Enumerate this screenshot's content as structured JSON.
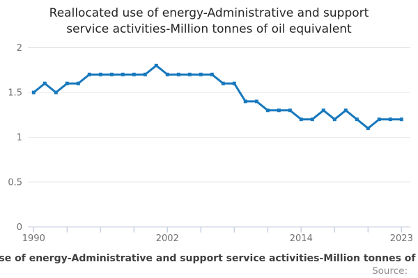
{
  "title": "Reallocated use of energy-Administrative and support service activities-Million tonnes of oil equivalent",
  "footer": {
    "legend": "Reallocated use of energy-Administrative and support service activities-Million tonnes of oil equivalent",
    "source_label": "Source:"
  },
  "colors": {
    "line": "#1878bd",
    "grid": "#e6e6e6",
    "axis": "#c9d2e2",
    "axis_label": "#707070",
    "title_text": "#262626",
    "legend_text": "#3f3f3f",
    "source_text": "#8c8c8c"
  },
  "chart_data": {
    "type": "line",
    "title": "Reallocated use of energy-Administrative and support service activities-Million tonnes of oil equivalent",
    "xlabel": "",
    "ylabel": "",
    "xlim": [
      1990,
      2023
    ],
    "ylim": [
      0,
      2
    ],
    "grid": true,
    "legend_position": "bottom",
    "x_tick_years": [
      1990,
      1993,
      1996,
      1999,
      2002,
      2005,
      2008,
      2011,
      2014,
      2017,
      2020,
      2023
    ],
    "x_labeled_years": [
      1990,
      2002,
      2014,
      2023
    ],
    "y_ticks": [
      0,
      0.5,
      1,
      1.5,
      2
    ],
    "x": [
      1990,
      1991,
      1992,
      1993,
      1994,
      1995,
      1996,
      1997,
      1998,
      1999,
      2000,
      2001,
      2002,
      2003,
      2004,
      2005,
      2006,
      2007,
      2008,
      2009,
      2010,
      2011,
      2012,
      2013,
      2014,
      2015,
      2016,
      2017,
      2018,
      2019,
      2020,
      2021,
      2022,
      2023
    ],
    "series": [
      {
        "name": "Reallocated use of energy-Administrative and support service activities-Million tonnes of oil equivalent",
        "values": [
          1.5,
          1.6,
          1.5,
          1.6,
          1.6,
          1.7,
          1.7,
          1.7,
          1.7,
          1.7,
          1.7,
          1.8,
          1.7,
          1.7,
          1.7,
          1.7,
          1.7,
          1.6,
          1.6,
          1.4,
          1.4,
          1.3,
          1.3,
          1.3,
          1.2,
          1.2,
          1.3,
          1.2,
          1.3,
          1.2,
          1.1,
          1.2,
          1.2,
          1.2
        ]
      }
    ]
  }
}
